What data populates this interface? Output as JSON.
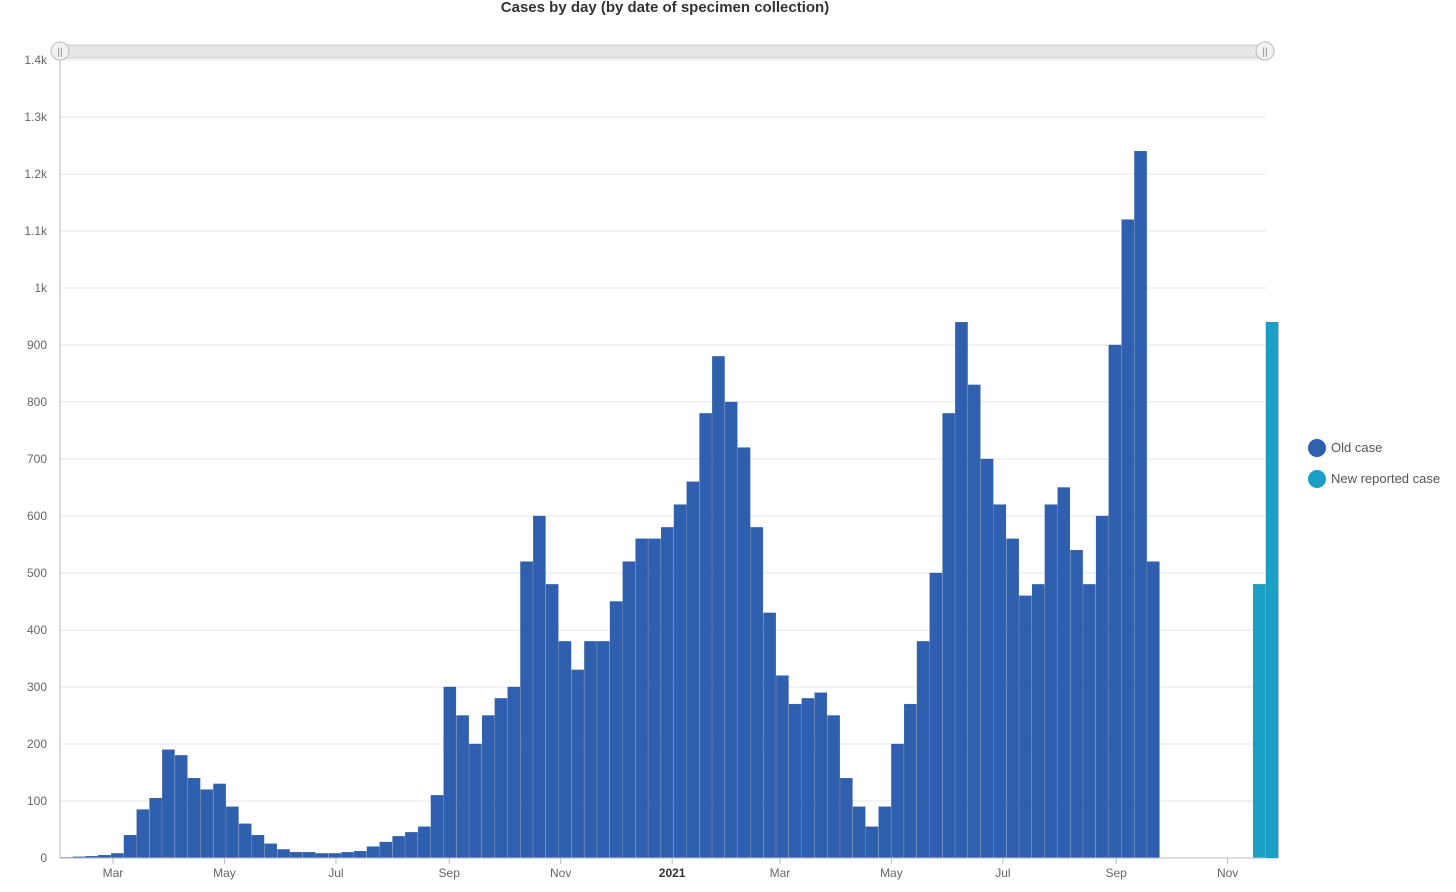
{
  "chart_data": {
    "type": "bar",
    "title": "Cases by day (by date of specimen collection)",
    "xlabel": "",
    "ylabel": "",
    "ylim": [
      0,
      1400
    ],
    "yticks": [
      0,
      100,
      200,
      300,
      400,
      500,
      600,
      700,
      800,
      900,
      "1k",
      "1.1k",
      "1.2k",
      "1.3k",
      "1.4k"
    ],
    "x_range": [
      "2020-02-01",
      "2021-11-22"
    ],
    "x_tick_labels": [
      {
        "label": "Mar",
        "date": "2020-03-01"
      },
      {
        "label": "May",
        "date": "2020-05-01"
      },
      {
        "label": "Jul",
        "date": "2020-07-01"
      },
      {
        "label": "Sep",
        "date": "2020-09-01"
      },
      {
        "label": "Nov",
        "date": "2020-11-01"
      },
      {
        "label": "2021",
        "date": "2021-01-01"
      },
      {
        "label": "Mar",
        "date": "2021-03-01"
      },
      {
        "label": "May",
        "date": "2021-05-01"
      },
      {
        "label": "Jul",
        "date": "2021-07-01"
      },
      {
        "label": "Sep",
        "date": "2021-09-01"
      },
      {
        "label": "Nov",
        "date": "2021-11-01"
      }
    ],
    "grid": true,
    "legend_position": "right",
    "series": [
      {
        "name": "Old case",
        "color": "#2f5faf",
        "x_start": "2020-02-01",
        "x_step": "7 days",
        "values": [
          1,
          2,
          3,
          5,
          8,
          40,
          85,
          105,
          190,
          180,
          140,
          120,
          130,
          90,
          60,
          40,
          25,
          15,
          10,
          10,
          8,
          8,
          10,
          12,
          20,
          28,
          38,
          45,
          55,
          110,
          300,
          250,
          200,
          250,
          280,
          300,
          520,
          600,
          480,
          380,
          330,
          380,
          380,
          450,
          520,
          560,
          560,
          580,
          620,
          660,
          780,
          880,
          800,
          720,
          580,
          430,
          320,
          270,
          280,
          290,
          250,
          140,
          90,
          55,
          90,
          200,
          270,
          380,
          500,
          780,
          940,
          830,
          700,
          620,
          560,
          460,
          480,
          620,
          650,
          540,
          480,
          600,
          900,
          1120,
          1240,
          520
        ]
      },
      {
        "name": "New reported case",
        "color": "#1aa0c4",
        "x_start": "2021-11-15",
        "x_step": "7 days",
        "values": [
          480,
          940
        ]
      }
    ]
  },
  "range_selector": {
    "left_handle": "||",
    "right_handle": "||"
  }
}
